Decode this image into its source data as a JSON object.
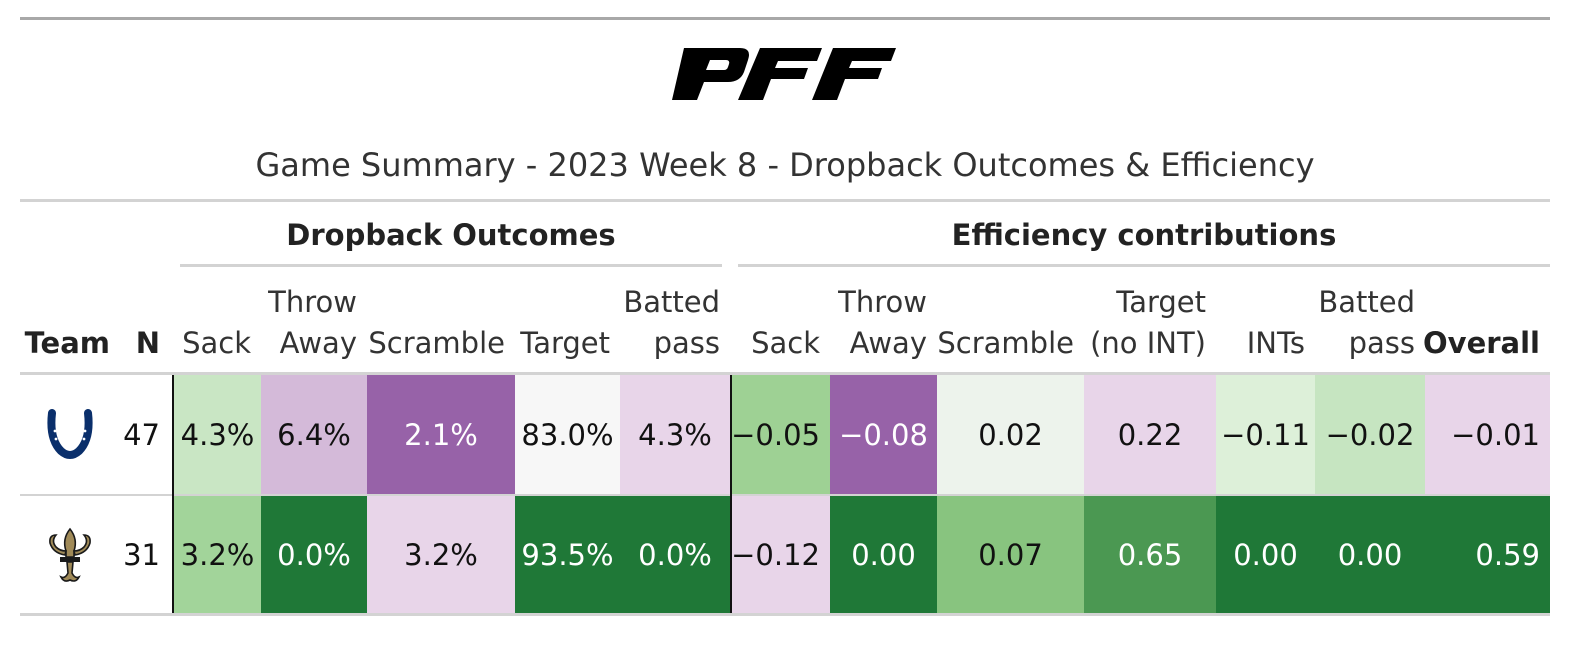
{
  "header": {
    "logo_text": "PFF",
    "subtitle": "Game Summary - 2023 Week 8 - Dropback Outcomes & Efficiency"
  },
  "spanners": {
    "dropback": "Dropback Outcomes",
    "efficiency": "Efficiency contributions"
  },
  "columns": {
    "team": "Team",
    "n": "N",
    "d_sack": "Sack",
    "d_throw_l1": "Throw",
    "d_throw_l2": "Away",
    "d_scramble": "Scramble",
    "d_target": "Target",
    "d_batted_l1": "Batted",
    "d_batted_l2": "pass",
    "e_sack": "Sack",
    "e_throw_l1": "Throw",
    "e_throw_l2": "Away",
    "e_scramble": "Scramble",
    "e_target_l1": "Target",
    "e_target_l2": "(no INT)",
    "e_ints": "INTs",
    "e_batted_l1": "Batted",
    "e_batted_l2": "pass",
    "e_overall": "Overall"
  },
  "rows": [
    {
      "team_icon": "colts-horseshoe-icon",
      "n": "47",
      "cells": [
        "4.3%",
        "6.4%",
        "2.1%",
        "83.0%",
        "4.3%",
        "−0.05",
        "−0.08",
        "0.02",
        "0.22",
        "−0.11",
        "−0.02",
        "−0.01"
      ],
      "colors": [
        "#c9e6c4",
        "#d4bad9",
        "#9762a8",
        "#f7f7f7",
        "#e8d5e9",
        "#9ed194",
        "#9762a8",
        "#edf3ec",
        "#e8d5e9",
        "#ddf0d9",
        "#c6e5c1",
        "#e8d5e9"
      ],
      "text_colors": [
        "#111111",
        "#111111",
        "#ffffff",
        "#111111",
        "#111111",
        "#111111",
        "#ffffff",
        "#111111",
        "#111111",
        "#111111",
        "#111111",
        "#111111"
      ]
    },
    {
      "team_icon": "saints-fleur-de-lis-icon",
      "n": "31",
      "cells": [
        "3.2%",
        "0.0%",
        "3.2%",
        "93.5%",
        "0.0%",
        "−0.12",
        "0.00",
        "0.07",
        "0.65",
        "0.00",
        "0.00",
        "0.59"
      ],
      "colors": [
        "#a2d49a",
        "#1f7837",
        "#e8d5e9",
        "#1f7837",
        "#1f7837",
        "#e8d5e9",
        "#1f7837",
        "#88c47f",
        "#4b9852",
        "#1f7837",
        "#1f7837",
        "#1f7837"
      ],
      "text_colors": [
        "#111111",
        "#ffffff",
        "#111111",
        "#ffffff",
        "#ffffff",
        "#111111",
        "#ffffff",
        "#111111",
        "#ffffff",
        "#ffffff",
        "#ffffff",
        "#ffffff"
      ]
    }
  ],
  "team_colors": {
    "colts_blue": "#0a2f6b",
    "saints_gold": "#a08a58",
    "saints_dark": "#1a1a1a"
  }
}
